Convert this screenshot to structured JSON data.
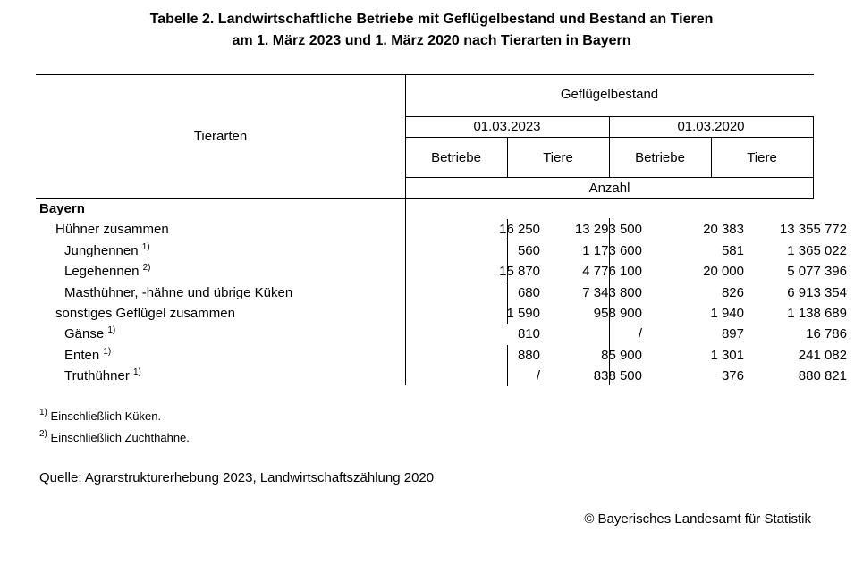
{
  "title": {
    "line1": "Tabelle 2. Landwirtschaftliche Betriebe mit Geflügelbestand und Bestand an Tieren",
    "line2": "am 1. März 2023 und 1. März 2020 nach Tierarten in Bayern"
  },
  "header": {
    "row_label": "Tierarten",
    "group": "Geflügelbestand",
    "date1": "01.03.2023",
    "date2": "01.03.2020",
    "col_betriebe": "Betriebe",
    "col_tiere": "Tiere",
    "unit": "Anzahl"
  },
  "rows": [
    {
      "label": "Bayern",
      "sup": "",
      "b23": "",
      "t23": "",
      "b20": "",
      "t20": ""
    },
    {
      "label": "Hühner zusammen",
      "sup": "",
      "b23": "16 250",
      "t23": "13 293 500",
      "b20": "20 383",
      "t20": "13 355 772"
    },
    {
      "label": "Junghennen",
      "sup": "1)",
      "b23": "560",
      "t23": "1 173 600",
      "b20": "581",
      "t20": "1 365 022"
    },
    {
      "label": "Legehennen",
      "sup": "2)",
      "b23": "15 870",
      "t23": "4 776 100",
      "b20": "20 000",
      "t20": "5 077 396"
    },
    {
      "label": "Masthühner, -hähne und übrige Küken",
      "sup": "",
      "b23": "680",
      "t23": "7 343 800",
      "b20": "826",
      "t20": "6 913 354"
    },
    {
      "label": "sonstiges Geflügel zusammen",
      "sup": "",
      "b23": "1 590",
      "t23": "958 900",
      "b20": "1 940",
      "t20": "1 138 689"
    },
    {
      "label": "Gänse",
      "sup": "1)",
      "b23": "810",
      "t23": "/",
      "b20": "897",
      "t20": "16 786"
    },
    {
      "label": "Enten",
      "sup": "1)",
      "b23": "880",
      "t23": "85 900",
      "b20": "1 301",
      "t20": "241 082"
    },
    {
      "label": "Truthühner",
      "sup": "1)",
      "b23": "/",
      "t23": "838 500",
      "b20": "376",
      "t20": "880 821"
    }
  ],
  "footnotes": [
    {
      "mark": "1)",
      "text": "Einschließlich Küken."
    },
    {
      "mark": "2)",
      "text": "Einschließlich Zuchthähne."
    }
  ],
  "source": "Quelle: Agrarstrukturerhebung 2023, Landwirtschaftszählung 2020",
  "copyright": "© Bayerisches Landesamt für Statistik"
}
